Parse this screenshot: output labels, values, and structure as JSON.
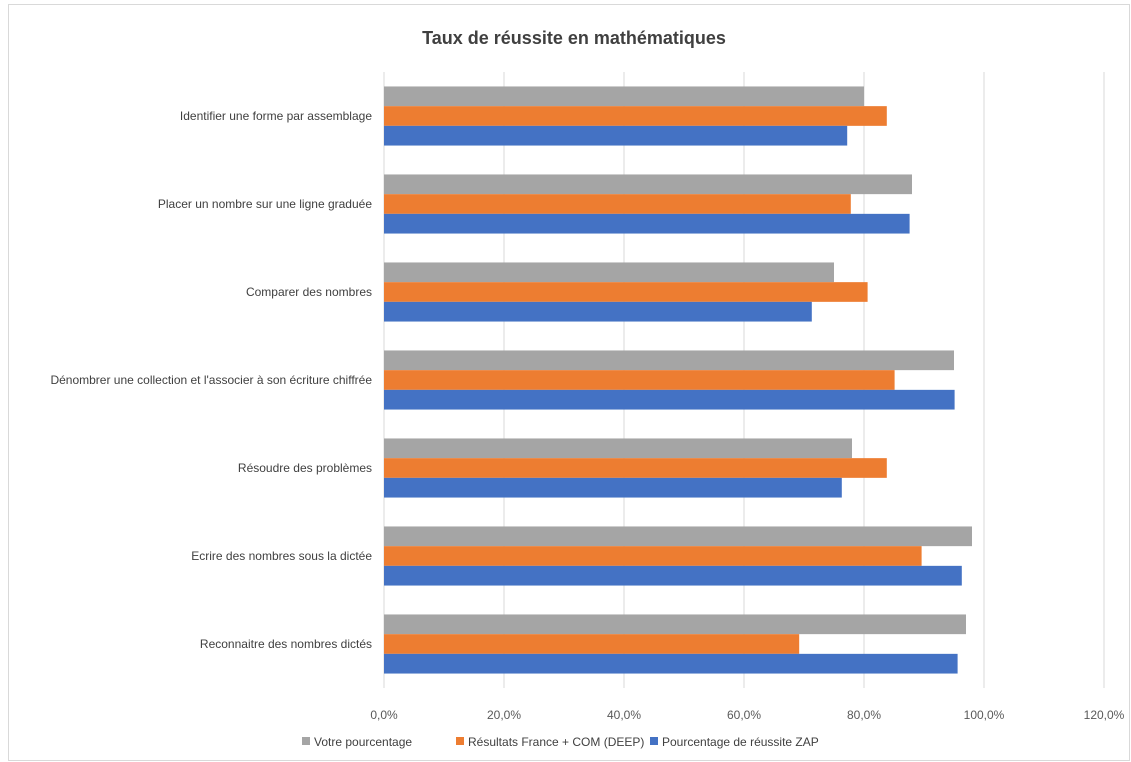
{
  "chart_data": {
    "type": "bar",
    "orientation": "horizontal",
    "title": "Taux de réussite en mathématiques",
    "xlabel": "",
    "ylabel": "",
    "xlim": [
      0,
      120
    ],
    "x_ticks": [
      "0,0%",
      "20,0%",
      "40,0%",
      "60,0%",
      "80,0%",
      "100,0%",
      "120,0%"
    ],
    "x_tick_values": [
      0,
      20,
      40,
      60,
      80,
      100,
      120
    ],
    "grid": "vertical",
    "legend_position": "bottom",
    "categories": [
      "Identifier une forme par assemblage",
      "Placer un nombre sur une ligne graduée",
      "Comparer des nombres",
      "Dénombrer une collection et l'associer à son écriture chiffrée",
      "Résoudre des problèmes",
      "Ecrire des nombres sous la dictée",
      "Reconnaitre des nombres dictés"
    ],
    "series": [
      {
        "name": "Votre pourcentage",
        "color": "#a5a5a5",
        "values": [
          80.0,
          88.0,
          75.0,
          95.0,
          78.0,
          98.0,
          97.0
        ]
      },
      {
        "name": "Résultats France + COM (DEEP)",
        "color": "#ed7d31",
        "values": [
          83.8,
          77.8,
          80.6,
          85.1,
          83.8,
          89.6,
          69.2
        ]
      },
      {
        "name": "Pourcentage de réussite ZAP",
        "color": "#4472c4",
        "values": [
          77.2,
          87.6,
          71.3,
          95.1,
          76.3,
          96.3,
          95.6
        ]
      }
    ],
    "legend_order": [
      0,
      1,
      2
    ]
  }
}
